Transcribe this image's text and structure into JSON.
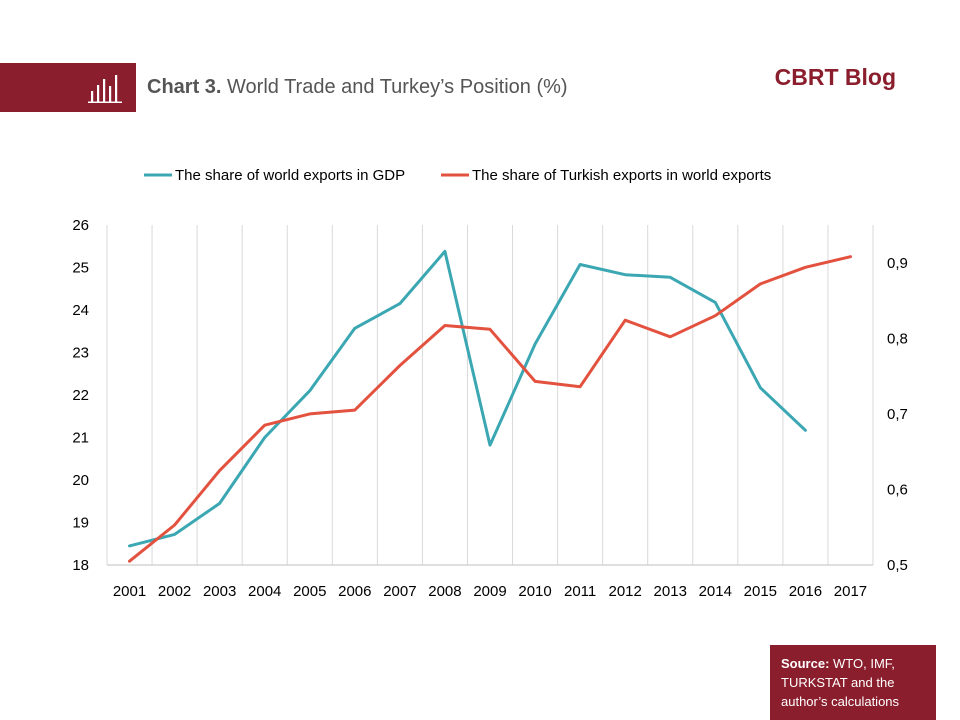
{
  "header": {
    "title_bold": "Chart 3.",
    "title_rest": " World Trade and Turkey’s Position  (%)",
    "brand": "CBRT Blog",
    "icon": "bar-chart-icon"
  },
  "source": {
    "label": "Source:",
    "text": " WTO, IMF, TURKSTAT and the author’s calculations"
  },
  "colors": {
    "accent": "#8b1e2d",
    "series_teal": "#3ba7b3",
    "series_red": "#e3513f"
  },
  "chart_data": {
    "type": "line",
    "title": "Chart 3. World Trade and Turkey’s Position  (%)",
    "x": [
      "2001",
      "2002",
      "2003",
      "2004",
      "2005",
      "2006",
      "2007",
      "2008",
      "2009",
      "2010",
      "2011",
      "2012",
      "2013",
      "2014",
      "2015",
      "2016",
      "2017"
    ],
    "legend_position": "top",
    "grid": {
      "horizontal": false,
      "vertical": true
    },
    "y_left": {
      "min": 18,
      "max": 26,
      "ticks": [
        "18",
        "19",
        "20",
        "21",
        "22",
        "23",
        "24",
        "25",
        "26"
      ]
    },
    "y_right": {
      "min": 0.5,
      "max": 0.95,
      "ticks": [
        "0,5",
        "0,6",
        "0,7",
        "0,8",
        "0,9"
      ]
    },
    "series": [
      {
        "name": "The share of world exports in GDP",
        "axis": "left",
        "color": "#3ba7b3",
        "values": [
          18.45,
          18.72,
          19.45,
          21.0,
          22.1,
          23.57,
          24.15,
          25.38,
          20.82,
          23.2,
          25.07,
          24.83,
          24.77,
          24.18,
          22.17,
          21.17,
          null
        ]
      },
      {
        "name": "The share of Turkish exports in world exports",
        "axis": "right",
        "color": "#e3513f",
        "values": [
          0.505,
          0.553,
          0.625,
          0.685,
          0.7,
          0.705,
          0.764,
          0.817,
          0.812,
          0.743,
          0.736,
          0.824,
          0.802,
          0.83,
          0.872,
          0.894,
          0.908
        ]
      }
    ]
  }
}
